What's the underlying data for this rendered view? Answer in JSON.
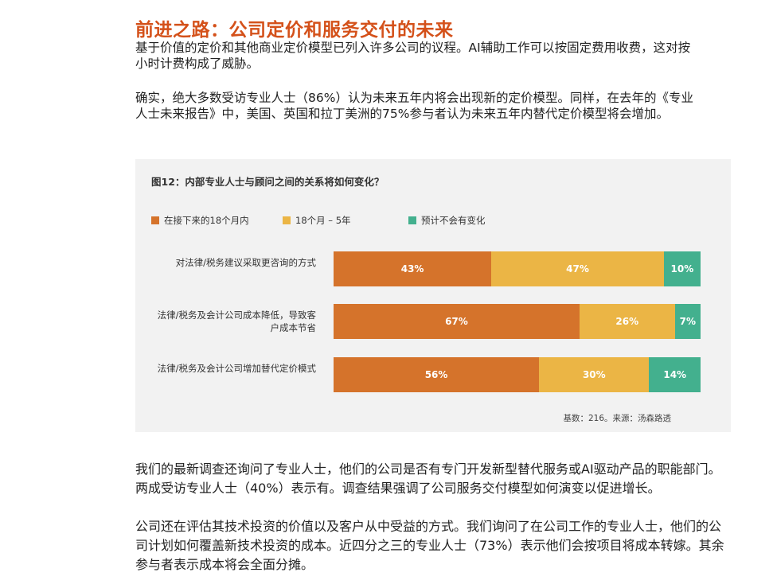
{
  "heading": "前进之路：公司定价和服务交付的未来",
  "paragraphs_before": [
    "基于价值的定价和其他商业定价模型已列入许多公司的议程。AI辅助工作可以按固定费用收费，这对按小时计费构成了威胁。",
    "确实，绝大多数受访专业人士（86%）认为未来五年内将会出现新的定价模型。同样，在去年的《专业人士未来报告》中，美国、英国和拉丁美洲的75%参与者认为未来五年内替代定价模型将会增加。"
  ],
  "chart_data": {
    "type": "stacked-bar-horizontal",
    "title": "图12：内部专业人士与顾问之间的关系将如何变化？",
    "categories": [
      "对法律/税务建议采取更咨询的方式",
      "法律/税务及会计公司成本降低，导致客户成本节省",
      "法律/税务及会计公司增加替代定价模式"
    ],
    "series": [
      {
        "name": "在接下来的18个月内",
        "color": "#d5732b",
        "values": [
          43,
          67,
          56
        ],
        "value_labels": [
          "43%",
          "67%",
          "56%"
        ]
      },
      {
        "name": "18个月 – 5年",
        "color": "#ebb545",
        "values": [
          47,
          26,
          30
        ],
        "value_labels": [
          "47%",
          "26%",
          "30%"
        ]
      },
      {
        "name": "预计不会有变化",
        "color": "#43b08e",
        "values": [
          10,
          7,
          14
        ],
        "value_labels": [
          "10%",
          "7%",
          "14%"
        ]
      }
    ],
    "xlim": [
      0,
      100
    ],
    "legend": "top",
    "note": "基数：216。来源：汤森路透"
  },
  "paragraphs_after": [
    "我们的最新调查还询问了专业人士，他们的公司是否有专门开发新型替代服务或AI驱动产品的职能部门。两成受访专业人士（40%）表示有。调查结果强调了公司服务交付模型如何演变以促进增长。",
    "公司还在评估其技术投资的价值以及客户从中受益的方式。我们询问了在公司工作的专业人士，他们的公司计划如何覆盖新技术投资的成本。近四分之三的专业人士（73%）表示他们会按项目将成本转嫁。其余参与者表示成本将会全面分摊。"
  ]
}
